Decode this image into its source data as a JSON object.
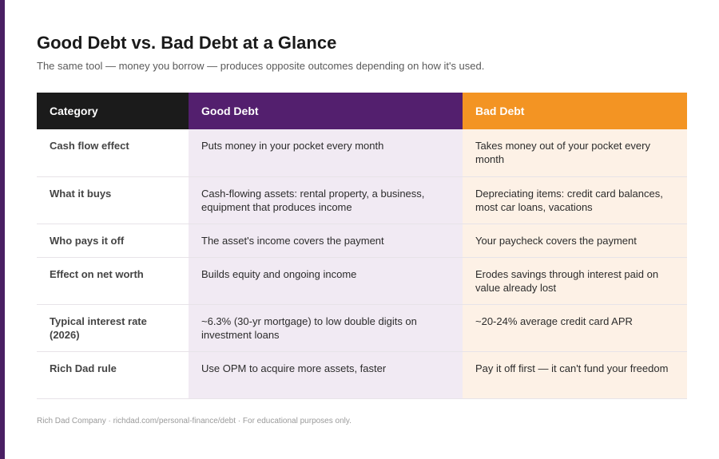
{
  "title": "Good Debt vs. Bad Debt at a Glance",
  "subtitle": "The same tool — money you borrow — produces opposite outcomes depending on how it's used.",
  "colors": {
    "accent_bar": "#4a1f63",
    "category_header": "#1b1b1b",
    "good_header": "#531f6e",
    "bad_header": "#f39423",
    "good_cell": "#f1eaf3",
    "bad_cell": "#fdf1e6"
  },
  "table": {
    "headers": [
      "Category",
      "Good Debt",
      "Bad Debt"
    ],
    "rows": [
      {
        "category": "Cash flow effect",
        "good": "Puts money in your pocket every month",
        "bad": "Takes money out of your pocket every month"
      },
      {
        "category": "What it buys",
        "good": "Cash-flowing assets: rental property, a business, equipment that produces income",
        "bad": "Depreciating items: credit card balances, most car loans, vacations"
      },
      {
        "category": "Who pays it off",
        "good": "The asset's income covers the payment",
        "bad": "Your paycheck covers the payment"
      },
      {
        "category": "Effect on net worth",
        "good": "Builds equity and ongoing income",
        "bad": "Erodes savings through interest paid on value already lost"
      },
      {
        "category": "Typical interest rate (2026)",
        "good": "~6.3% (30-yr mortgage) to low double digits on investment loans",
        "bad": "~20-24% average credit card APR"
      },
      {
        "category": "Rich Dad rule",
        "good": "Use OPM to acquire more assets, faster",
        "bad": "Pay it off first — it can't fund your freedom"
      }
    ]
  },
  "footer": "Rich Dad Company · richdad.com/personal-finance/debt · For educational purposes only."
}
